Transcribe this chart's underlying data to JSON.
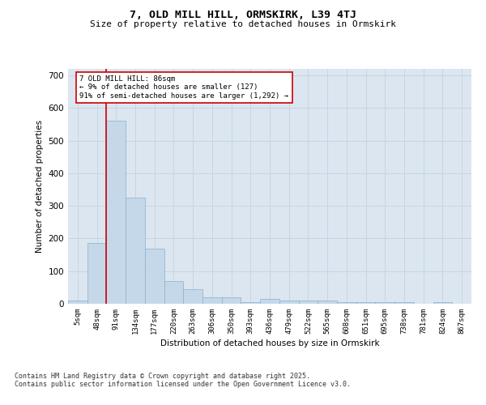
{
  "title1": "7, OLD MILL HILL, ORMSKIRK, L39 4TJ",
  "title2": "Size of property relative to detached houses in Ormskirk",
  "xlabel": "Distribution of detached houses by size in Ormskirk",
  "ylabel": "Number of detached properties",
  "categories": [
    "5sqm",
    "48sqm",
    "91sqm",
    "134sqm",
    "177sqm",
    "220sqm",
    "263sqm",
    "306sqm",
    "350sqm",
    "393sqm",
    "436sqm",
    "479sqm",
    "522sqm",
    "565sqm",
    "608sqm",
    "651sqm",
    "695sqm",
    "738sqm",
    "781sqm",
    "824sqm",
    "867sqm"
  ],
  "values": [
    10,
    185,
    560,
    325,
    170,
    70,
    45,
    20,
    20,
    5,
    15,
    10,
    10,
    10,
    5,
    5,
    5,
    5,
    0,
    5,
    0
  ],
  "bar_color": "#c5d8ea",
  "bar_edge_color": "#8ab0cc",
  "marker_label": "7 OLD MILL HILL: 86sqm\n← 9% of detached houses are smaller (127)\n91% of semi-detached houses are larger (1,292) →",
  "annotation_box_color": "#ffffff",
  "annotation_box_edge_color": "#cc0000",
  "marker_line_color": "#cc0000",
  "grid_color": "#c8d4e4",
  "background_color": "#dce6f0",
  "footer": "Contains HM Land Registry data © Crown copyright and database right 2025.\nContains public sector information licensed under the Open Government Licence v3.0.",
  "ylim": [
    0,
    720
  ],
  "yticks": [
    0,
    100,
    200,
    300,
    400,
    500,
    600,
    700
  ]
}
